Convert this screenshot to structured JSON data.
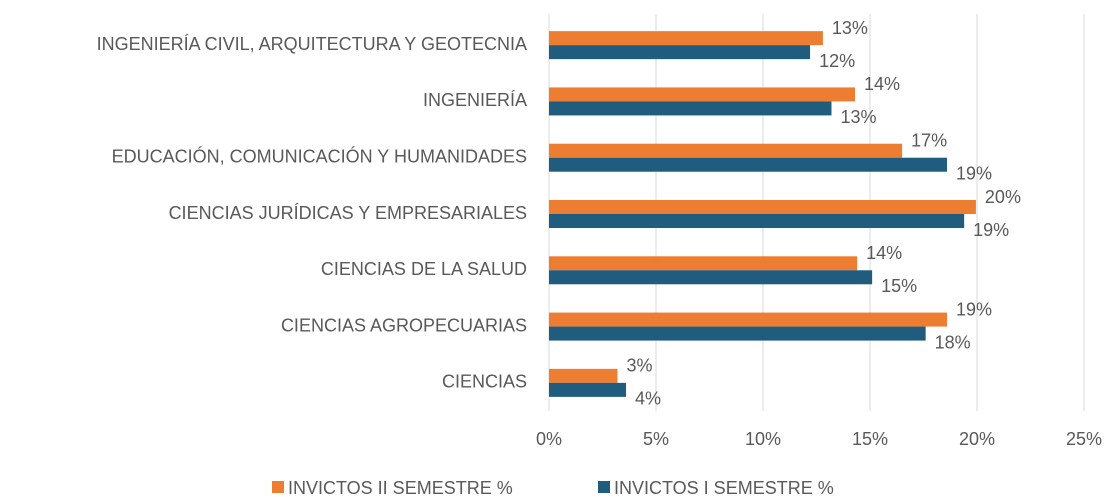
{
  "chart_data": {
    "type": "hbar",
    "categories": [
      "INGENIERÍA CIVIL, ARQUITECTURA Y GEOTECNIA",
      "INGENIERÍA",
      "EDUCACIÓN, COMUNICACIÓN Y HUMANIDADES",
      "CIENCIAS JURÍDICAS Y EMPRESARIALES",
      "CIENCIAS DE LA SALUD",
      "CIENCIAS AGROPECUARIAS",
      "CIENCIAS"
    ],
    "series": [
      {
        "name": "INVICTOS II SEMESTRE %",
        "color": "#ED7D31",
        "values": [
          12.8,
          14.3,
          16.5,
          19.95,
          14.4,
          18.6,
          3.2
        ],
        "value_labels": [
          "13%",
          "14%",
          "17%",
          "20%",
          "14%",
          "19%",
          "3%"
        ]
      },
      {
        "name": "INVICTOS I SEMESTRE %",
        "color": "#1F5C7E",
        "values": [
          12.2,
          13.2,
          18.6,
          19.4,
          15.1,
          17.6,
          3.6
        ],
        "value_labels": [
          "12%",
          "13%",
          "19%",
          "19%",
          "15%",
          "18%",
          "4%"
        ]
      }
    ],
    "xlim": [
      0,
      25
    ],
    "xticks": [
      {
        "value": 0,
        "label": "0%"
      },
      {
        "value": 5,
        "label": "5%"
      },
      {
        "value": 10,
        "label": "10%"
      },
      {
        "value": 15,
        "label": "15%"
      },
      {
        "value": 20,
        "label": "20%"
      },
      {
        "value": 25,
        "label": "25%"
      }
    ],
    "grid": true,
    "legend": "bottom"
  }
}
